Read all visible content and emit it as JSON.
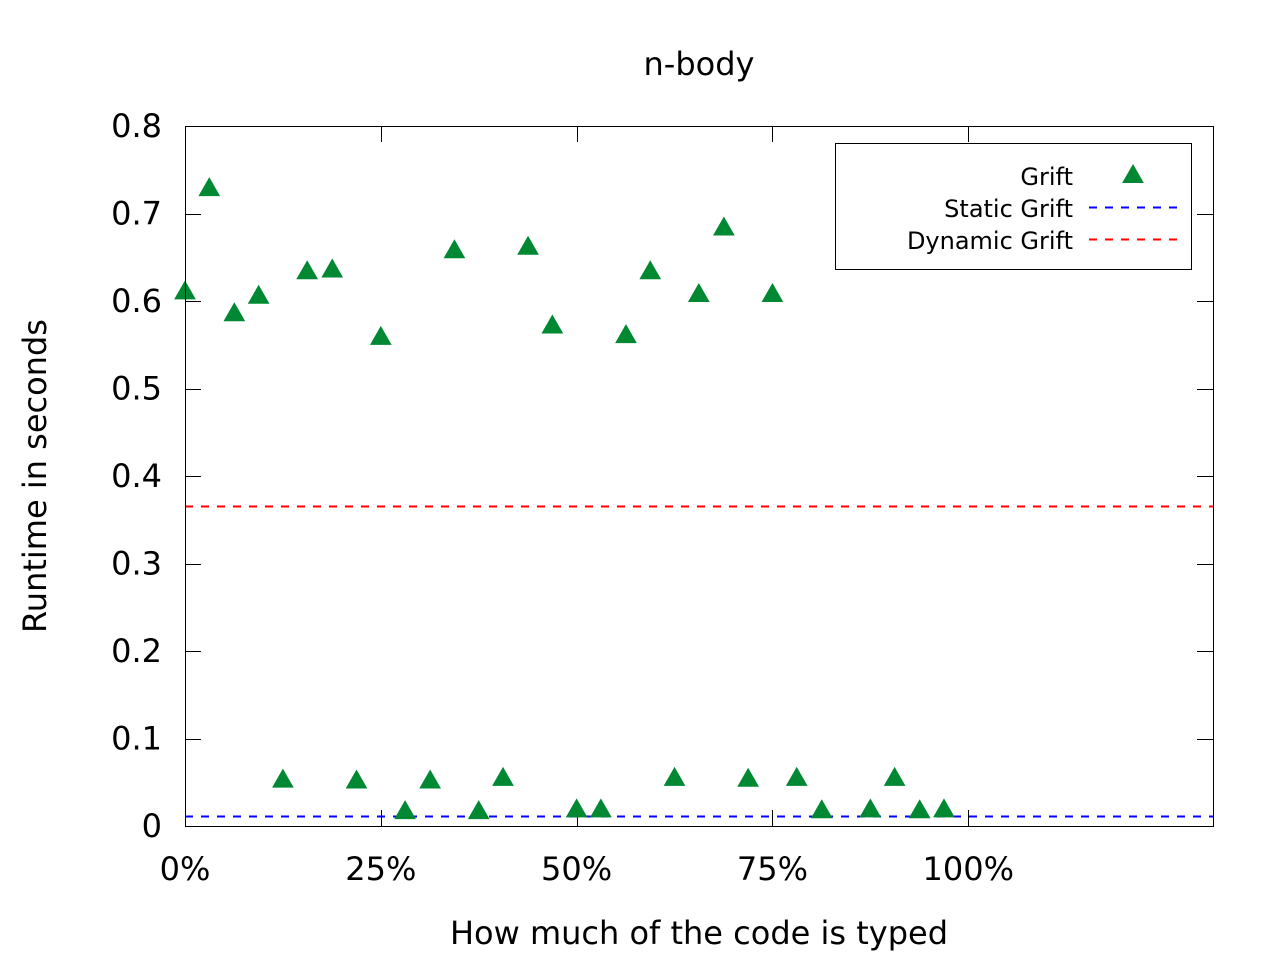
{
  "chart_data": {
    "type": "scatter",
    "title": "n-body",
    "xlabel": "How much of the code is typed",
    "ylabel": "Runtime in seconds",
    "xlim": [
      0,
      131.25
    ],
    "ylim": [
      0,
      0.8
    ],
    "x_ticks": [
      {
        "value": 0,
        "label": "0%"
      },
      {
        "value": 25,
        "label": "25%"
      },
      {
        "value": 50,
        "label": "50%"
      },
      {
        "value": 75,
        "label": "75%"
      },
      {
        "value": 100,
        "label": "100%"
      }
    ],
    "y_ticks": [
      {
        "value": 0,
        "label": "0"
      },
      {
        "value": 0.1,
        "label": "0.1"
      },
      {
        "value": 0.2,
        "label": "0.2"
      },
      {
        "value": 0.3,
        "label": "0.3"
      },
      {
        "value": 0.4,
        "label": "0.4"
      },
      {
        "value": 0.5,
        "label": "0.5"
      },
      {
        "value": 0.6,
        "label": "0.6"
      },
      {
        "value": 0.7,
        "label": "0.7"
      },
      {
        "value": 0.8,
        "label": "0.8"
      }
    ],
    "grid": false,
    "legend_position": "top-right",
    "series": [
      {
        "name": "Grift",
        "kind": "points",
        "marker": "triangle",
        "color": "#008833",
        "points": [
          [
            0.0,
            0.611
          ],
          [
            3.1,
            0.729
          ],
          [
            6.3,
            0.586
          ],
          [
            9.4,
            0.606
          ],
          [
            12.5,
            0.053
          ],
          [
            15.6,
            0.634
          ],
          [
            18.8,
            0.636
          ],
          [
            21.9,
            0.052
          ],
          [
            25.0,
            0.559
          ],
          [
            28.1,
            0.017
          ],
          [
            31.3,
            0.052
          ],
          [
            34.4,
            0.658
          ],
          [
            37.5,
            0.017
          ],
          [
            40.6,
            0.055
          ],
          [
            43.8,
            0.662
          ],
          [
            46.9,
            0.572
          ],
          [
            50.0,
            0.019
          ],
          [
            53.1,
            0.019
          ],
          [
            56.3,
            0.561
          ],
          [
            59.4,
            0.634
          ],
          [
            62.5,
            0.055
          ],
          [
            65.6,
            0.608
          ],
          [
            68.8,
            0.684
          ],
          [
            71.9,
            0.054
          ],
          [
            75.0,
            0.608
          ],
          [
            78.1,
            0.055
          ],
          [
            81.3,
            0.018
          ],
          [
            87.5,
            0.019
          ],
          [
            90.6,
            0.055
          ],
          [
            93.8,
            0.018
          ],
          [
            96.9,
            0.019
          ]
        ]
      },
      {
        "name": "Static Grift",
        "kind": "hline",
        "dash": true,
        "color": "#0000ff",
        "value": 0.012
      },
      {
        "name": "Dynamic Grift",
        "kind": "hline",
        "dash": true,
        "color": "#ff0000",
        "value": 0.366
      }
    ]
  }
}
